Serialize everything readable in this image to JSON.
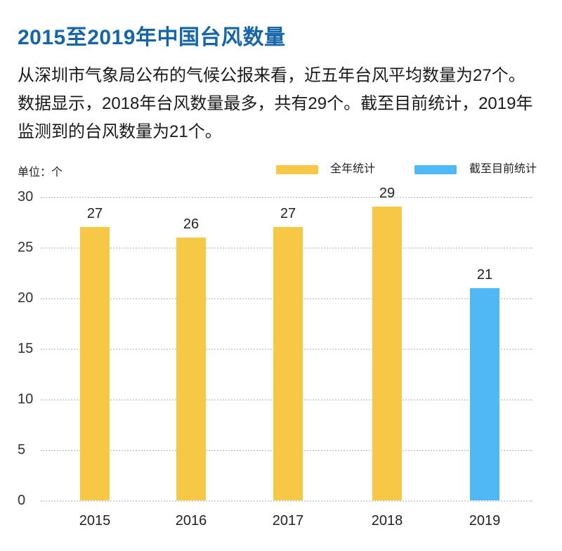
{
  "header": {
    "title": "2015至2019年中国台风数量",
    "description": "从深圳市气象局公布的气候公报来看，近五年台风平均数量为27个。数据显示，2018年台风数量最多，共有29个。截至目前统计，2019年监测到的台风数量为21个。"
  },
  "chart_data": {
    "type": "bar",
    "title": "2015至2019年中国台风数量",
    "unit_label": "单位：个",
    "categories": [
      "2015",
      "2016",
      "2017",
      "2018",
      "2019"
    ],
    "values": [
      27,
      26,
      27,
      29,
      21
    ],
    "bar_series": [
      "全年统计",
      "全年统计",
      "全年统计",
      "全年统计",
      "截至目前统计"
    ],
    "series": [
      {
        "name": "全年统计",
        "color": "#F6C846",
        "values": [
          27,
          26,
          27,
          29,
          null
        ]
      },
      {
        "name": "截至目前统计",
        "color": "#4FB8F5",
        "values": [
          null,
          null,
          null,
          null,
          21
        ]
      }
    ],
    "legend": [
      {
        "label": "全年统计",
        "color": "#F6C846"
      },
      {
        "label": "截至目前统计",
        "color": "#4FB8F5"
      }
    ],
    "xlabel": "",
    "ylabel": "",
    "ylim": [
      0,
      30
    ],
    "yticks": [
      0,
      5,
      10,
      15,
      20,
      25,
      30
    ],
    "grid": "horizontal-dotted",
    "legend_position": "top-right",
    "value_labels": true
  },
  "colors": {
    "title_text": "#1565A8",
    "body_text": "#1A1A1A",
    "axis_text": "#333333",
    "gridline": "#D4D4D4",
    "background": "#FFFFFF"
  }
}
